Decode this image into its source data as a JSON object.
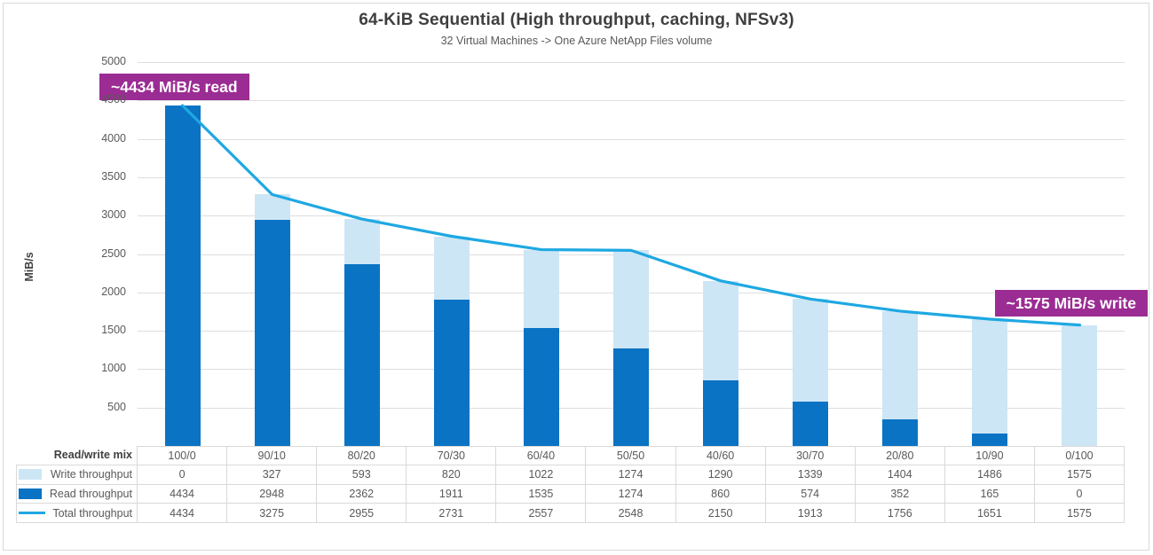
{
  "chart": {
    "title": "64-KiB Sequential (High throughput, caching, NFSv3)",
    "subtitle": "32 Virtual Machines -> One Azure NetApp Files volume",
    "y_axis_title": "MiB/s"
  },
  "annotations": {
    "read_callout": "~4434 MiB/s read",
    "write_callout": "~1575 MiB/s write"
  },
  "colors": {
    "read_bar": "#0A73C4",
    "write_bar": "#CDE6F5",
    "total_line": "#1EA8E2",
    "callout_bg": "#9B2C93",
    "grid": "#DEDEDE",
    "table_border": "#D9D9D9",
    "text_dark": "#404040",
    "text_gray": "#595959"
  },
  "table": {
    "header_label": "Read/write mix"
  },
  "chart_data": {
    "type": "bar",
    "subtype": "stacked-column-with-line-overlay",
    "title": "64-KiB Sequential (High throughput, caching, NFSv3)",
    "subtitle": "32 Virtual Machines -> One Azure NetApp Files volume",
    "categories": [
      "100/0",
      "90/10",
      "80/20",
      "70/30",
      "60/40",
      "50/50",
      "40/60",
      "30/70",
      "20/80",
      "10/90",
      "0/100"
    ],
    "categories_header": "Read/write mix",
    "series": [
      {
        "name": "Write throughput",
        "role": "write",
        "render": "bar-stack-top",
        "color": "#CDE6F5",
        "values": [
          0,
          327,
          593,
          820,
          1022,
          1274,
          1290,
          1339,
          1404,
          1486,
          1575
        ]
      },
      {
        "name": "Read throughput",
        "role": "read",
        "render": "bar-stack-bottom",
        "color": "#0A73C4",
        "values": [
          4434,
          2948,
          2362,
          1911,
          1535,
          1274,
          860,
          574,
          352,
          165,
          0
        ]
      },
      {
        "name": "Total throughput",
        "role": "total",
        "render": "line",
        "color": "#1EA8E2",
        "values": [
          4434,
          3275,
          2955,
          2731,
          2557,
          2548,
          2150,
          1913,
          1756,
          1651,
          1575
        ]
      }
    ],
    "xlabel": "",
    "ylabel": "MiB/s",
    "ylim": [
      0,
      5000
    ],
    "ytick_step": 500,
    "grid": true,
    "legend_position": "data-table-left"
  }
}
